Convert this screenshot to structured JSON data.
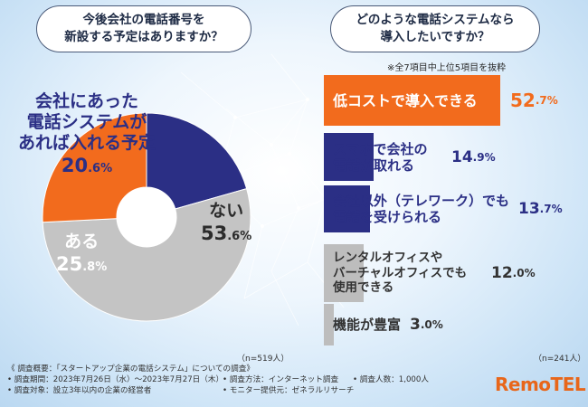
{
  "chart_data": [
    {
      "type": "pie",
      "question": [
        "今後会社の電話番号を",
        "新設する予定はありますか？"
      ],
      "slices": [
        {
          "label": [
            "会社にあった",
            "電話システムが",
            "あれば入れる予定"
          ],
          "value": 20.6,
          "value_int": "20",
          "value_dec": ".6%",
          "color": "#2b2f85"
        },
        {
          "label": [
            "ない"
          ],
          "value": 53.6,
          "value_int": "53",
          "value_dec": ".6%",
          "color": "#c4c4c4"
        },
        {
          "label": [
            "ある"
          ],
          "value": 25.8,
          "value_int": "25",
          "value_dec": ".8%",
          "color": "#f26b1d"
        }
      ],
      "n_label": "（n=519人）"
    },
    {
      "type": "bar",
      "question": [
        "どのような電話システムなら",
        "導入したいですか？"
      ],
      "note": "※全7項目中上位5項目を抜粋",
      "categories": [
        [
          "低コストで導入できる"
        ],
        [
          "スマホで会社の",
          "電話が取れる"
        ],
        [
          "会社以外（テレワーク）でも",
          "電話を受けられる"
        ],
        [
          "レンタルオフィスや",
          "バーチャルオフィスでも",
          "使用できる"
        ],
        [
          "機能が豊富"
        ]
      ],
      "values": [
        52.7,
        14.9,
        13.7,
        12.0,
        3.0
      ],
      "value_int": [
        "52",
        "14",
        "13",
        "12",
        "3"
      ],
      "value_dec": [
        ".7%",
        ".9%",
        ".7%",
        ".0%",
        ".0%"
      ],
      "colors": [
        "#f26b1d",
        "#2b2f85",
        "#2b2f85",
        "#bdbdbd",
        "#bdbdbd"
      ],
      "n_label": "（n=241人）"
    }
  ],
  "footer": {
    "row1": [
      "《 調査概要：「スタートアップ企業の電話システム」についての調査》"
    ],
    "row2": [
      "• 調査期間：2023年7月26日（水）〜2023年7月27日（木）",
      "• 調査方法：インターネット調査",
      "• 調査人数：1,000人"
    ],
    "row3": [
      "• 調査対象：設立3年以内の企業の経営者",
      "• モニター提供元：ゼネラルリサーチ"
    ]
  },
  "logo": "RemoTEL",
  "colors": {
    "orange": "#f26b1d",
    "navy": "#2b2f85",
    "gray": "#c4c4c4"
  }
}
